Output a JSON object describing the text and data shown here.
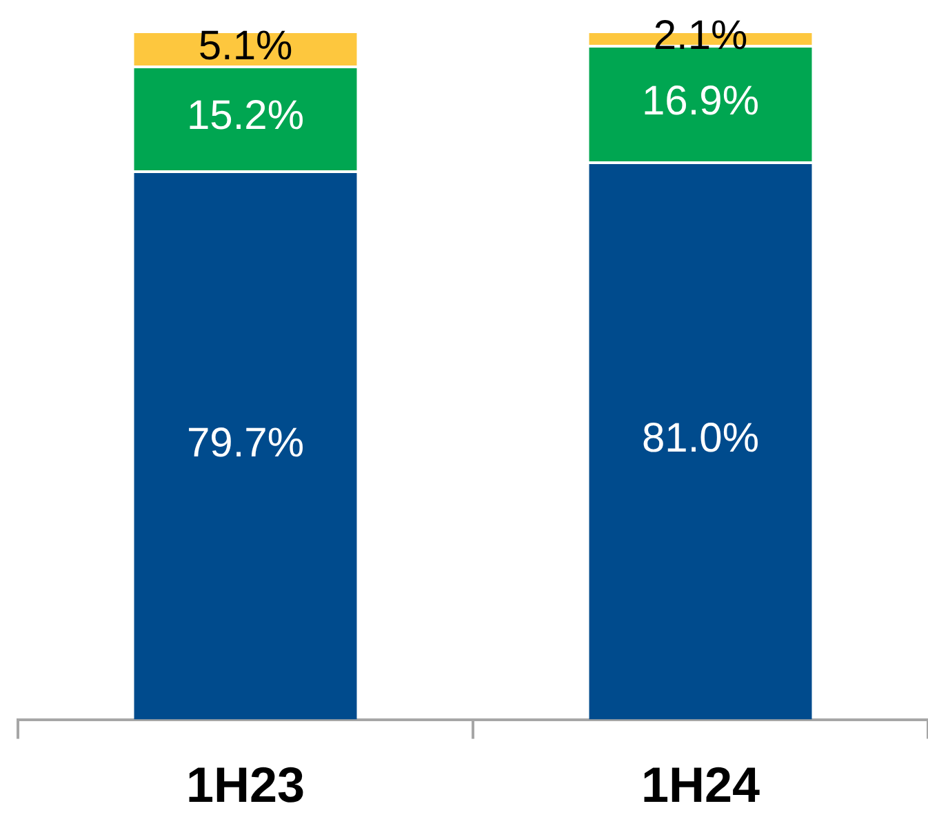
{
  "chart_data": {
    "type": "bar",
    "stacked": true,
    "categories": [
      "1H23",
      "1H24"
    ],
    "ylim": [
      0,
      100
    ],
    "tick_labels": "x",
    "legend": false,
    "grid": false,
    "series": [
      {
        "color": "#004b8d",
        "values": [
          79.7,
          81.0
        ],
        "value_labels": [
          "79.7%",
          "81.0%"
        ]
      },
      {
        "color": "#00a651",
        "values": [
          15.2,
          16.9
        ],
        "value_labels": [
          "15.2%",
          "16.9%"
        ]
      },
      {
        "color": "#fdc73e",
        "values": [
          5.1,
          2.1
        ],
        "value_labels": [
          "5.1%",
          "2.1%"
        ]
      }
    ]
  }
}
